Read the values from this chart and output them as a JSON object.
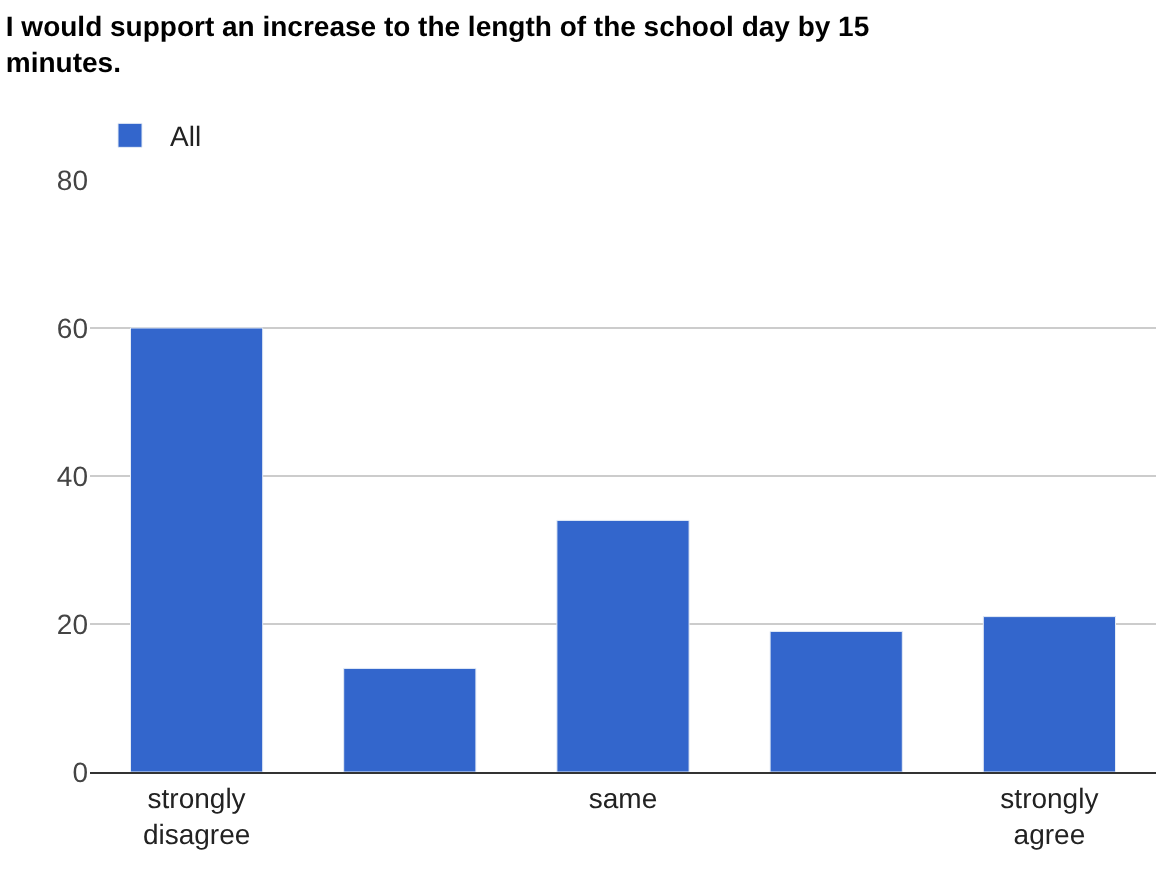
{
  "chart_data": {
    "type": "bar",
    "title": "I would support an increase to the length of the school day by 15 minutes.",
    "categories": [
      "strongly disagree",
      null,
      "same",
      null,
      "strongly agree"
    ],
    "series": [
      {
        "name": "All",
        "color": "#3366cc",
        "values": [
          60,
          14,
          34,
          19,
          21
        ]
      }
    ],
    "ylim": [
      0,
      80
    ],
    "yticks": [
      0,
      20,
      40,
      60,
      80
    ],
    "grid": "y",
    "legend": "top left"
  }
}
